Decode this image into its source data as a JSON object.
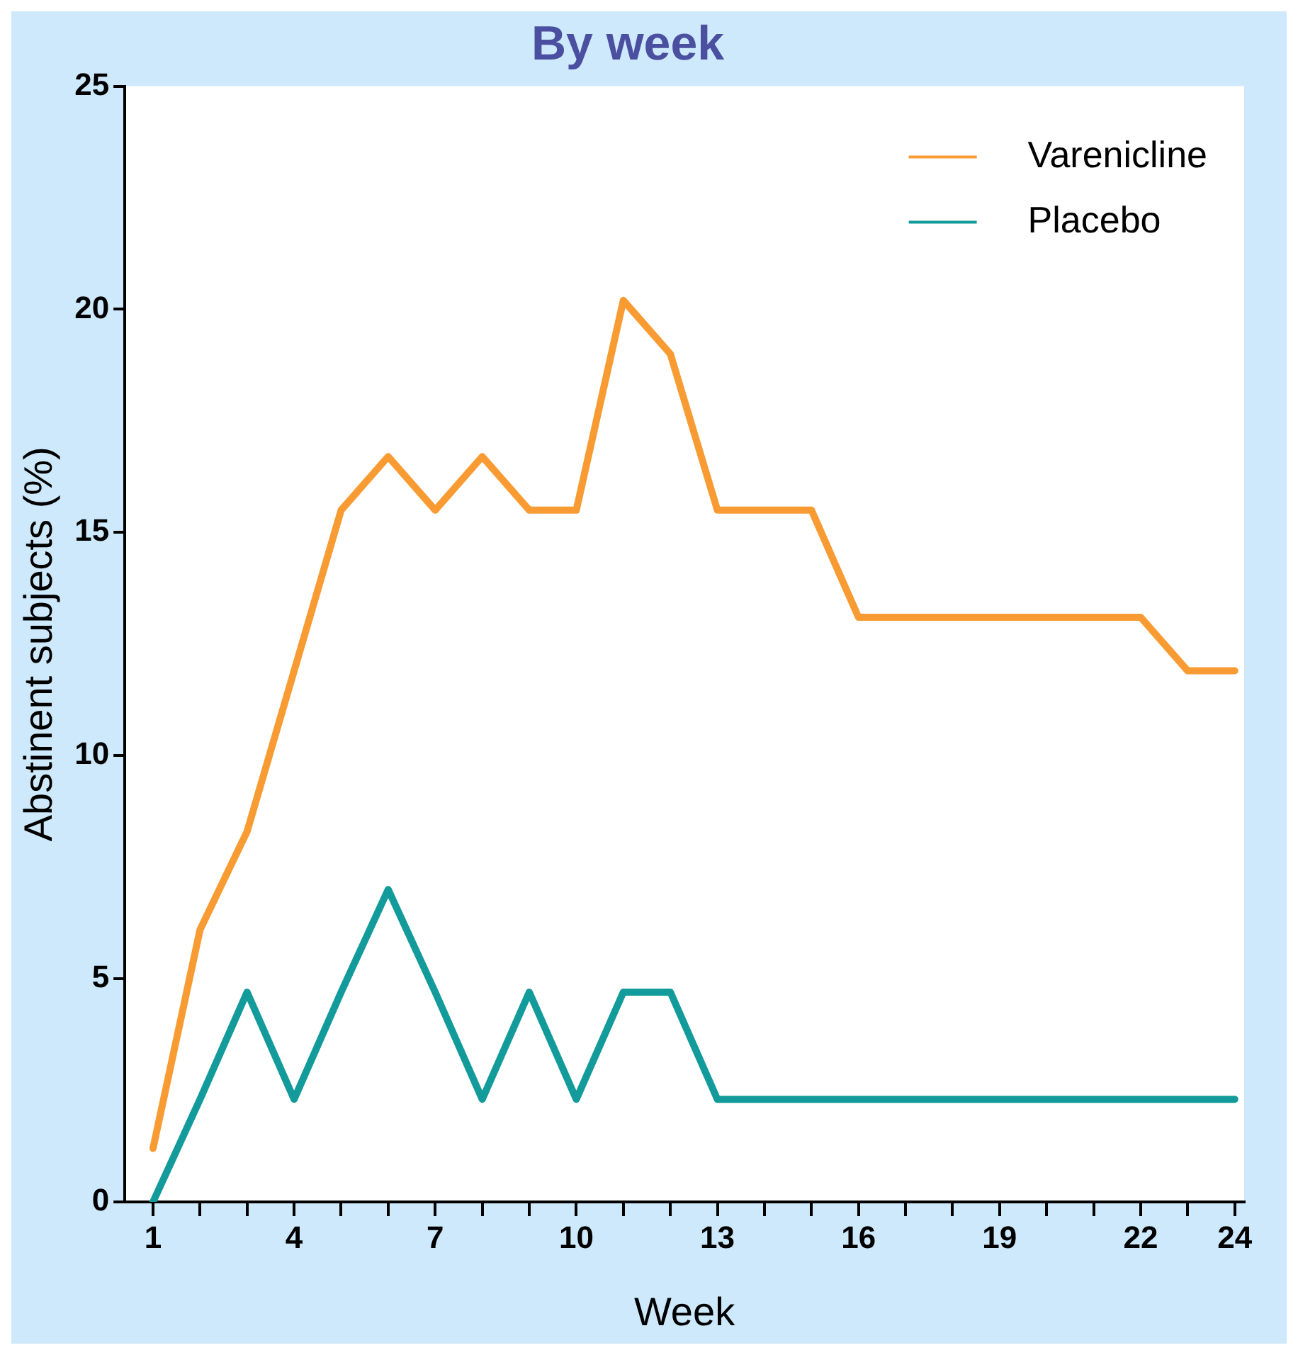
{
  "chart_data": {
    "type": "line",
    "title": "By week",
    "xlabel": "Week",
    "ylabel": "Abstinent subjects (%)",
    "x": [
      1,
      2,
      3,
      4,
      5,
      6,
      7,
      8,
      9,
      10,
      11,
      12,
      13,
      14,
      15,
      16,
      17,
      18,
      19,
      20,
      21,
      22,
      23,
      24
    ],
    "series": [
      {
        "name": "Varenicline",
        "color": "#f99b33",
        "values": [
          1.2,
          6.1,
          8.3,
          11.9,
          15.5,
          16.7,
          15.5,
          16.7,
          15.5,
          15.5,
          20.2,
          19.0,
          15.5,
          15.5,
          15.5,
          13.1,
          13.1,
          13.1,
          13.1,
          13.1,
          13.1,
          13.1,
          11.9,
          11.9
        ]
      },
      {
        "name": "Placebo",
        "color": "#139a9a",
        "values": [
          0,
          2.3,
          4.7,
          2.3,
          4.7,
          7.0,
          4.7,
          2.3,
          4.7,
          2.3,
          4.7,
          4.7,
          2.3,
          2.3,
          2.3,
          2.3,
          2.3,
          2.3,
          2.3,
          2.3,
          2.3,
          2.3,
          2.3,
          2.3
        ]
      }
    ],
    "xlim": [
      0.4,
      24.2
    ],
    "xticks": [
      1,
      {
        "value": 2,
        "label": null
      },
      {
        "value": 3,
        "label": null
      },
      4,
      {
        "value": 5,
        "label": null
      },
      {
        "value": 6,
        "label": null
      },
      7,
      {
        "value": 8,
        "label": null
      },
      {
        "value": 9,
        "label": null
      },
      10,
      {
        "value": 11,
        "label": null
      },
      {
        "value": 12,
        "label": null
      },
      13,
      {
        "value": 14,
        "label": null
      },
      {
        "value": 15,
        "label": null
      },
      16,
      {
        "value": 17,
        "label": null
      },
      {
        "value": 18,
        "label": null
      },
      19,
      {
        "value": 20,
        "label": null
      },
      {
        "value": 21,
        "label": null
      },
      22,
      {
        "value": 23,
        "label": null
      },
      24
    ],
    "ylim": [
      0,
      25
    ],
    "yticks": [
      0,
      5,
      10,
      15,
      20,
      25
    ],
    "grid": false,
    "legend": "top right",
    "marker": "none",
    "line_style": "solid"
  }
}
